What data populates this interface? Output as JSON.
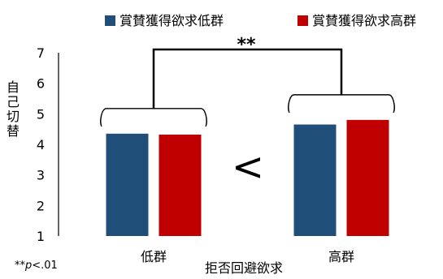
{
  "chart_data": {
    "type": "bar",
    "categories": [
      "低群",
      "高群"
    ],
    "series": [
      {
        "name": "賞賛獲得欲求低群",
        "values": [
          4.35,
          4.65
        ],
        "color": "#1F4E79"
      },
      {
        "name": "賞賛獲得欲求高群",
        "values": [
          4.32,
          4.8
        ],
        "color": "#C00000"
      }
    ],
    "xlabel": "拒否回避欲求",
    "ylabel": "自己切替",
    "ylim": [
      1,
      7
    ],
    "yticks": [
      1,
      2,
      3,
      4,
      5,
      6,
      7
    ],
    "grid": false,
    "legend_position": "top",
    "significance": {
      "label": "**",
      "note_prefix": "**",
      "note_italic": "p",
      "note_suffix": "<.01"
    },
    "comparison_symbol": "<",
    "comparison_color": "#6CC48A"
  }
}
